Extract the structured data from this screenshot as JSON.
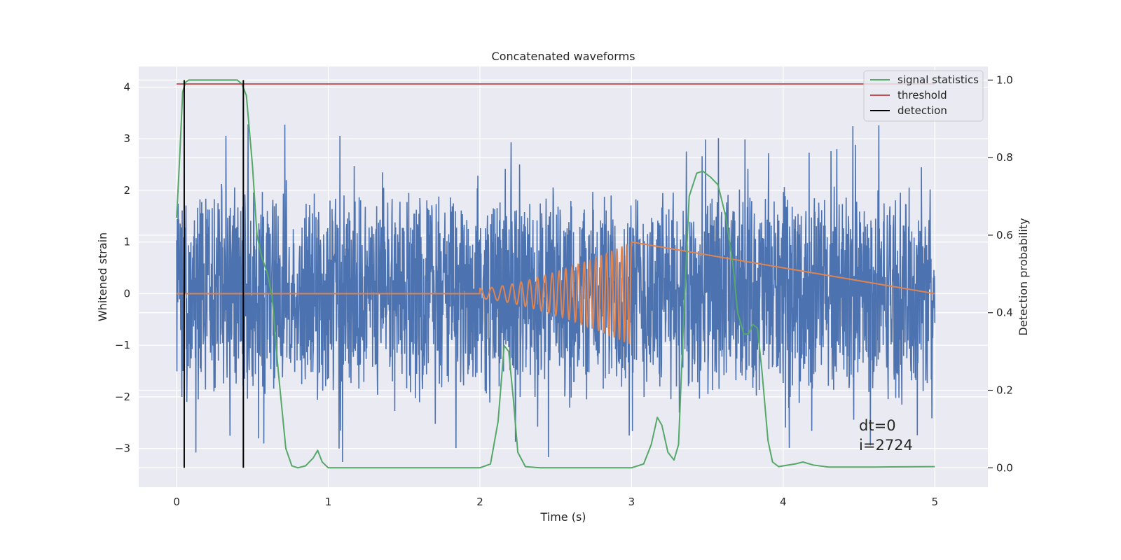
{
  "chart_data": {
    "type": "line",
    "title": "Concatenated waveforms",
    "xlabel": "Time (s)",
    "ylabel": "Whitened strain",
    "ylabel_right": "Detection probability",
    "xlim": [
      -0.25,
      5.35
    ],
    "ylim": [
      -3.75,
      4.4
    ],
    "ylim_right": [
      -0.05,
      1.035
    ],
    "xticks": [
      0,
      1,
      2,
      3,
      4,
      5
    ],
    "yticks": [
      -3,
      -2,
      -1,
      0,
      1,
      2,
      3,
      4
    ],
    "yticks_right": [
      0.0,
      0.2,
      0.4,
      0.6,
      0.8,
      1.0
    ],
    "grid": true,
    "legend_position": "top-right",
    "colors": {
      "strain": "#4c72b0",
      "injected": "#dd8452",
      "signal_statistics": "#55a868",
      "threshold": "#c44e52",
      "detection": "#000000",
      "background": "#eaeaf2",
      "grid": "#ffffff"
    },
    "legend": [
      {
        "label": "signal statistics",
        "color": "#55a868"
      },
      {
        "label": "threshold",
        "color": "#c44e52"
      },
      {
        "label": "detection",
        "color": "#000000"
      }
    ],
    "series": [
      {
        "name": "signal statistics",
        "axis": "right",
        "x": [
          0.0,
          0.02,
          0.04,
          0.06,
          0.08,
          0.1,
          0.2,
          0.3,
          0.4,
          0.43,
          0.46,
          0.5,
          0.53,
          0.56,
          0.6,
          0.63,
          0.67,
          0.72,
          0.76,
          0.8,
          0.85,
          0.9,
          0.93,
          0.96,
          1.0,
          1.5,
          2.0,
          2.07,
          2.12,
          2.16,
          2.19,
          2.22,
          2.25,
          2.3,
          2.4,
          2.6,
          3.0,
          3.08,
          3.13,
          3.17,
          3.2,
          3.24,
          3.28,
          3.31,
          3.34,
          3.38,
          3.43,
          3.47,
          3.52,
          3.57,
          3.62,
          3.67,
          3.7,
          3.74,
          3.77,
          3.8,
          3.83,
          3.86,
          3.9,
          3.93,
          3.97,
          4.0,
          4.08,
          4.13,
          4.2,
          4.3,
          4.6,
          5.0
        ],
        "y": [
          0.645,
          0.8,
          0.97,
          0.995,
          1.0,
          1.0,
          1.0,
          1.0,
          1.0,
          0.99,
          0.96,
          0.78,
          0.6,
          0.545,
          0.5,
          0.44,
          0.25,
          0.05,
          0.005,
          0.0,
          0.005,
          0.025,
          0.045,
          0.015,
          0.0,
          0.0,
          0.0,
          0.01,
          0.12,
          0.315,
          0.3,
          0.18,
          0.04,
          0.003,
          0.0,
          0.0,
          0.0,
          0.01,
          0.06,
          0.13,
          0.11,
          0.04,
          0.02,
          0.06,
          0.35,
          0.7,
          0.76,
          0.765,
          0.75,
          0.73,
          0.65,
          0.52,
          0.4,
          0.345,
          0.345,
          0.37,
          0.36,
          0.25,
          0.07,
          0.015,
          0.003,
          0.005,
          0.01,
          0.015,
          0.007,
          0.002,
          0.002,
          0.003
        ]
      },
      {
        "name": "threshold",
        "axis": "right",
        "x": [
          0.0,
          5.0
        ],
        "y": [
          0.99,
          0.99
        ]
      },
      {
        "name": "detection",
        "axis": "right",
        "x": [
          0.05,
          0.44
        ],
        "y": [
          0.0,
          1.0
        ]
      }
    ],
    "strain_envelope": {
      "x_range": [
        0.0,
        5.0
      ],
      "typical_max": 2.2,
      "typical_min": -2.2
    },
    "injected_chirp": {
      "x_range": [
        2.0,
        3.0
      ],
      "start_amplitude": 0.1,
      "end_amplitude": 1.0
    },
    "annotations": [
      "dt=0",
      "i=2724"
    ]
  }
}
